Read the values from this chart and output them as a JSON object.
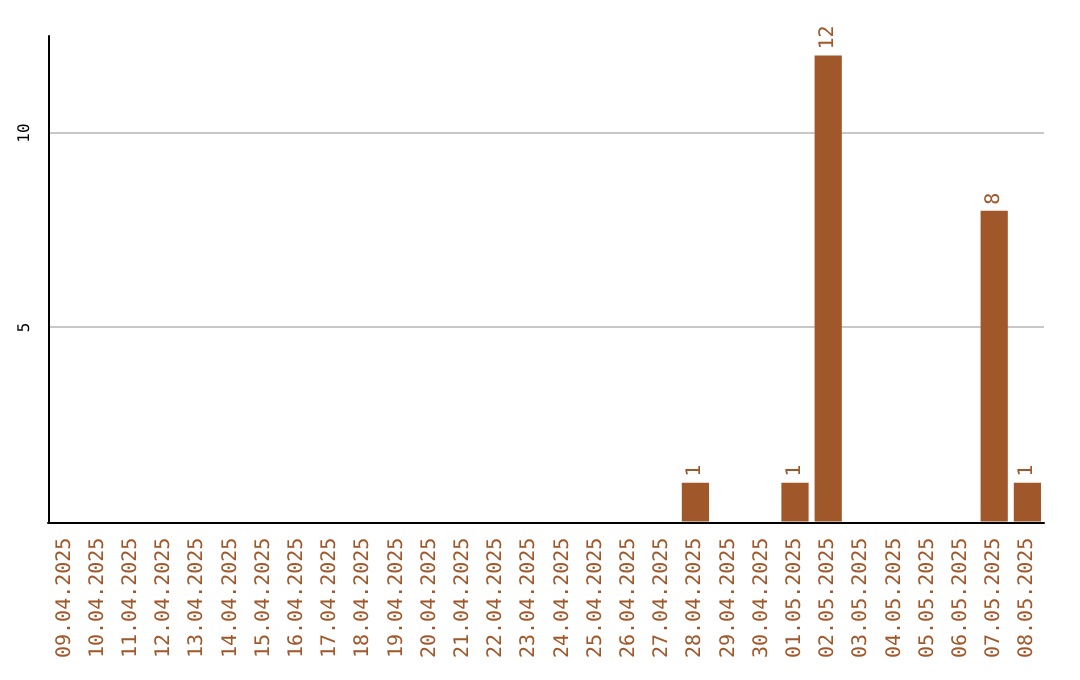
{
  "chart_data": {
    "type": "bar",
    "categories": [
      "09.04.2025",
      "10.04.2025",
      "11.04.2025",
      "12.04.2025",
      "13.04.2025",
      "14.04.2025",
      "15.04.2025",
      "16.04.2025",
      "17.04.2025",
      "18.04.2025",
      "19.04.2025",
      "20.04.2025",
      "21.04.2025",
      "22.04.2025",
      "23.04.2025",
      "24.04.2025",
      "25.04.2025",
      "26.04.2025",
      "27.04.2025",
      "28.04.2025",
      "29.04.2025",
      "30.04.2025",
      "01.05.2025",
      "02.05.2025",
      "03.05.2025",
      "04.05.2025",
      "05.05.2025",
      "06.05.2025",
      "07.05.2025",
      "08.05.2025"
    ],
    "values": [
      0,
      0,
      0,
      0,
      0,
      0,
      0,
      0,
      0,
      0,
      0,
      0,
      0,
      0,
      0,
      0,
      0,
      0,
      0,
      1,
      0,
      0,
      1,
      12,
      0,
      0,
      0,
      0,
      8,
      1
    ],
    "value_labels": [
      null,
      null,
      null,
      null,
      null,
      null,
      null,
      null,
      null,
      null,
      null,
      null,
      null,
      null,
      null,
      null,
      null,
      null,
      null,
      "1",
      null,
      null,
      "1",
      "12",
      null,
      null,
      null,
      null,
      "8",
      "1"
    ],
    "color": "#a0572a",
    "ylim": [
      0,
      12.5
    ],
    "yticks": [
      5,
      10
    ],
    "grid": "y"
  }
}
